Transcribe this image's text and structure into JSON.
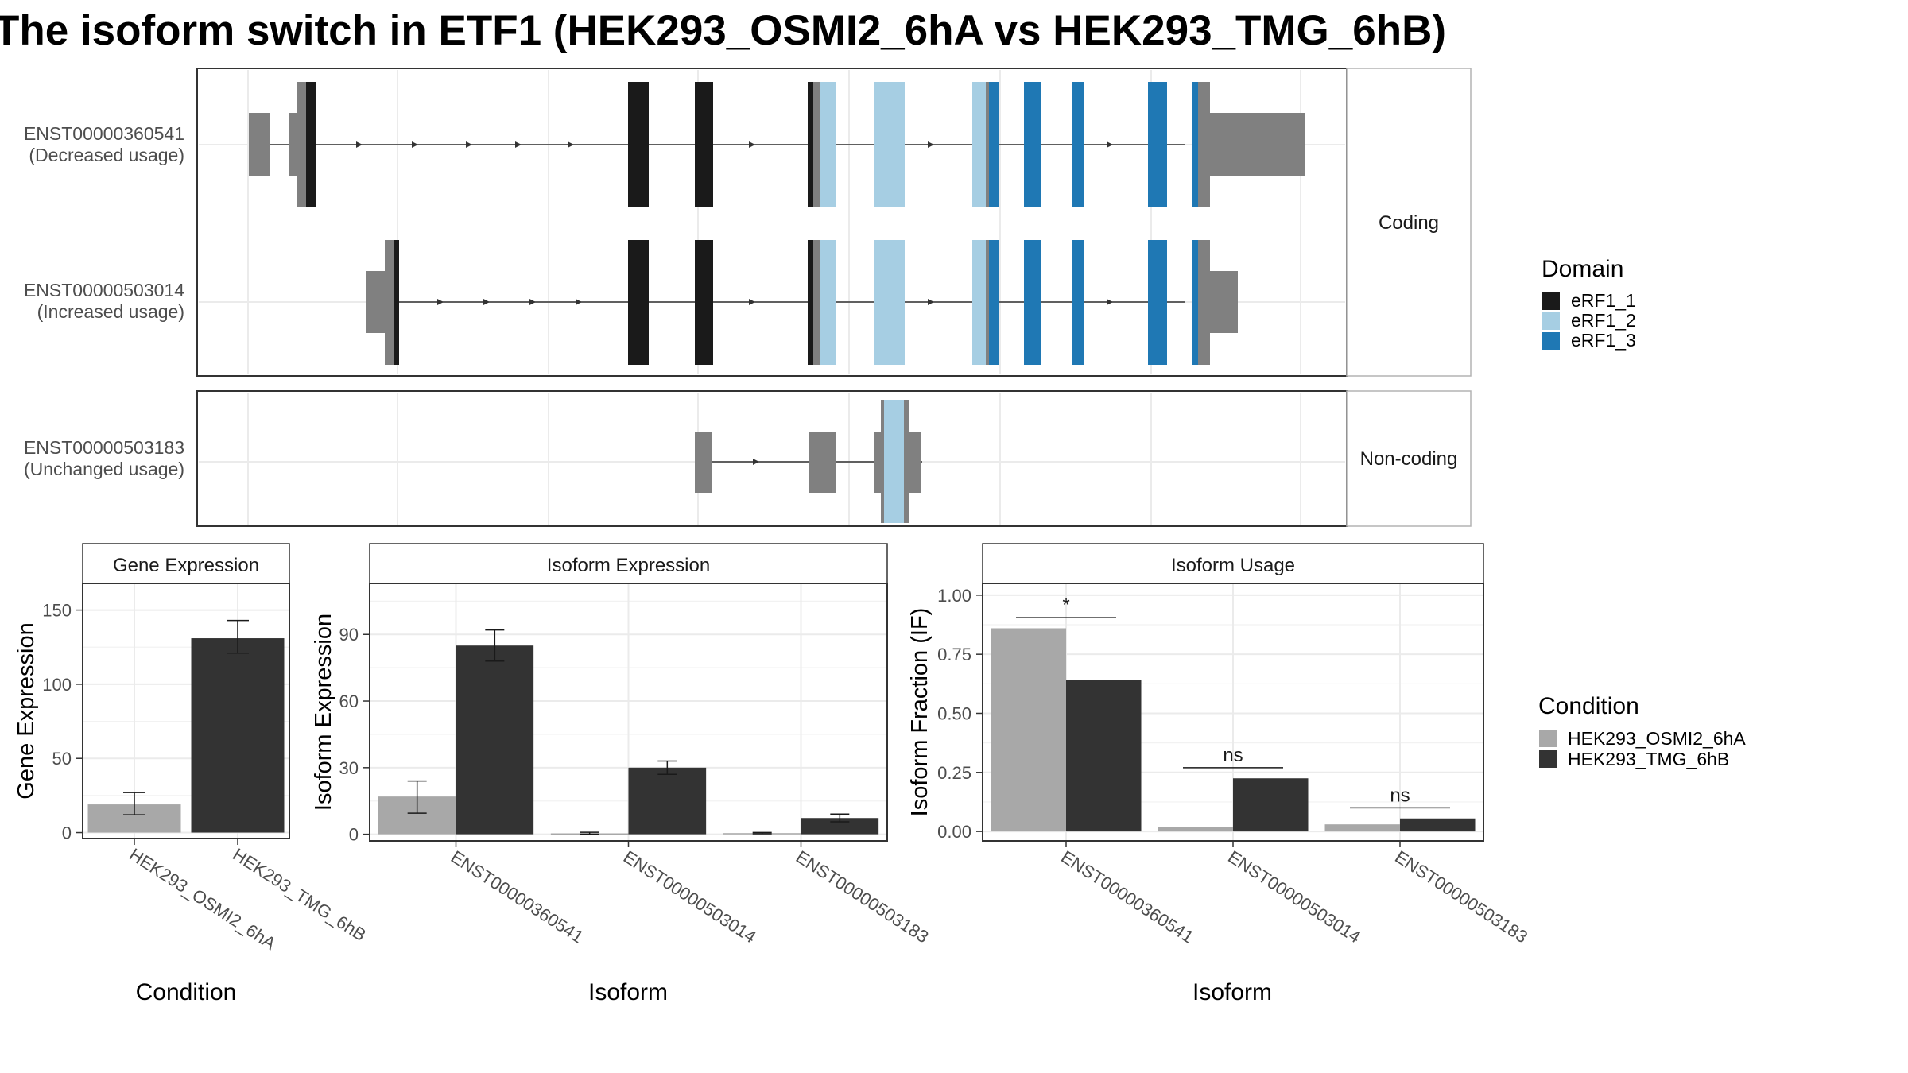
{
  "title": "The isoform switch in ETF1 (HEK293_OSMI2_6hA vs HEK293_TMG_6hB)",
  "colors": {
    "exon": "#808080",
    "eRF1_1": "#1a1a1a",
    "eRF1_2": "#a6cee3",
    "eRF1_3": "#1f78b4",
    "cond_a": "#a8a8a8",
    "cond_b": "#333333",
    "panel_border": "#333333",
    "strip_border": "#b3b3b3",
    "grid": "#ebebeb"
  },
  "structure": {
    "facets": [
      "Coding",
      "Non-coding"
    ],
    "transcripts": [
      {
        "id": "ENST00000360541",
        "usage": "(Decreased usage)",
        "facet": "Coding"
      },
      {
        "id": "ENST00000503014",
        "usage": "(Increased usage)",
        "facet": "Coding"
      },
      {
        "id": "ENST00000503183",
        "usage": "(Unchanged usage)",
        "facet": "Non-coding"
      }
    ]
  },
  "legend_domain": {
    "title": "Domain",
    "items": [
      {
        "label": "eRF1_1",
        "color": "#1a1a1a"
      },
      {
        "label": "eRF1_2",
        "color": "#a6cee3"
      },
      {
        "label": "eRF1_3",
        "color": "#1f78b4"
      }
    ]
  },
  "legend_condition": {
    "title": "Condition",
    "items": [
      {
        "label": "HEK293_OSMI2_6hA",
        "color": "#a8a8a8"
      },
      {
        "label": "HEK293_TMG_6hB",
        "color": "#333333"
      }
    ]
  },
  "chart_data": [
    {
      "type": "bar",
      "title": "Gene Expression",
      "xlabel": "Condition",
      "ylabel": "Gene Expression",
      "categories": [
        "HEK293_OSMI2_6hA",
        "HEK293_TMG_6hB"
      ],
      "values": [
        19,
        131
      ],
      "errors": [
        [
          12,
          27
        ],
        [
          121,
          143
        ]
      ],
      "colors": [
        "#a8a8a8",
        "#333333"
      ],
      "ylim": [
        -4,
        168
      ],
      "yticks": [
        0,
        50,
        100,
        150
      ]
    },
    {
      "type": "bar",
      "title": "Isoform Expression",
      "xlabel": "Isoform",
      "ylabel": "Isoform Expression",
      "categories": [
        "ENST00000360541",
        "ENST00000503014",
        "ENST00000503183"
      ],
      "series": [
        {
          "name": "HEK293_OSMI2_6hA",
          "values": [
            17,
            0.4,
            0.5
          ],
          "errors": [
            [
              9.5,
              24
            ],
            [
              0.1,
              0.9
            ],
            [
              0.2,
              0.8
            ]
          ]
        },
        {
          "name": "HEK293_TMG_6hB",
          "values": [
            85,
            30,
            7.3
          ],
          "errors": [
            [
              78,
              92
            ],
            [
              27,
              33
            ],
            [
              5.6,
              9.1
            ]
          ]
        }
      ],
      "ylim": [
        -3,
        113
      ],
      "yticks": [
        0,
        30,
        60,
        90
      ]
    },
    {
      "type": "bar",
      "title": "Isoform Usage",
      "xlabel": "Isoform",
      "ylabel": "Isoform Fraction (IF)",
      "categories": [
        "ENST00000360541",
        "ENST00000503014",
        "ENST00000503183"
      ],
      "series": [
        {
          "name": "HEK293_OSMI2_6hA",
          "values": [
            0.86,
            0.02,
            0.03
          ]
        },
        {
          "name": "HEK293_TMG_6hB",
          "values": [
            0.64,
            0.225,
            0.055
          ]
        }
      ],
      "significance": [
        "*",
        "ns",
        "ns"
      ],
      "sig_level": [
        0.905,
        0.27,
        0.1
      ],
      "ylim": [
        -0.04,
        1.05
      ],
      "yticks": [
        "0.00",
        "0.25",
        "0.50",
        "0.75",
        "1.00"
      ]
    }
  ]
}
